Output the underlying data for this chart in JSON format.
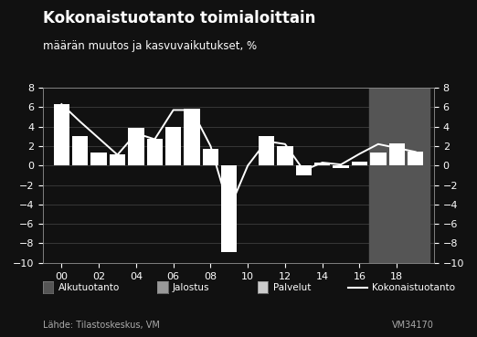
{
  "title": "Kokonaistuotanto toimialoittain",
  "subtitle": "määrän muutos ja kasvuvaikutukset, %",
  "source": "Lähde: Tilastoskeskus, VM",
  "watermark": "VM34170",
  "bg_color": "#111111",
  "plot_bg_color": "#111111",
  "shade_bg_color": "#555555",
  "bar_color": "#ffffff",
  "line_color": "#ffffff",
  "text_color": "#ffffff",
  "ylim": [
    -10,
    8
  ],
  "yticks": [
    -10,
    -8,
    -6,
    -4,
    -2,
    0,
    2,
    4,
    6,
    8
  ],
  "xtick_labels": [
    "00",
    "02",
    "04",
    "06",
    "08",
    "10",
    "12",
    "14",
    "16",
    "18"
  ],
  "xtick_pos": [
    2000,
    2002,
    2004,
    2006,
    2008,
    2010,
    2012,
    2014,
    2016,
    2018
  ],
  "years": [
    2000,
    2001,
    2002,
    2003,
    2004,
    2005,
    2006,
    2007,
    2008,
    2009,
    2010,
    2011,
    2012,
    2013,
    2014,
    2015,
    2016,
    2017,
    2018,
    2019
  ],
  "bar_values": [
    6.3,
    3.0,
    1.3,
    1.1,
    3.9,
    2.7,
    4.0,
    5.8,
    1.7,
    -8.9,
    0.0,
    3.0,
    2.0,
    -1.0,
    0.3,
    -0.3,
    0.4,
    1.3,
    2.3,
    1.4
  ],
  "line_values": [
    6.3,
    4.5,
    2.8,
    1.1,
    3.3,
    2.7,
    5.7,
    5.7,
    2.0,
    -4.5,
    0.0,
    2.5,
    2.2,
    -0.5,
    0.3,
    0.1,
    1.2,
    2.2,
    1.8,
    1.4
  ],
  "shade_start_year": 2017,
  "title_fontsize": 12,
  "subtitle_fontsize": 8.5,
  "tick_fontsize": 8,
  "legend_fontsize": 7.5,
  "source_fontsize": 7
}
